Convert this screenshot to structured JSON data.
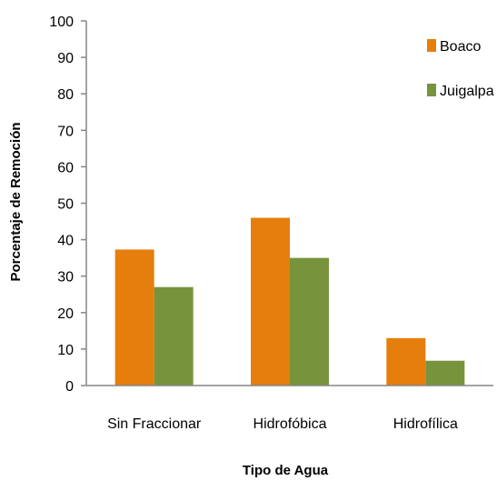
{
  "chart_data": {
    "type": "bar",
    "title": "",
    "xlabel": "Tipo de Agua",
    "ylabel": "Porcentaje de Remoción",
    "categories": [
      "Sin Fraccionar",
      "Hidrofóbica",
      "Hidrofílica"
    ],
    "series": [
      {
        "name": "Boaco",
        "values": [
          37.3,
          46.0,
          13.0
        ],
        "color": "#E67E0E"
      },
      {
        "name": "Juigalpa",
        "values": [
          27.0,
          35.0,
          6.8
        ],
        "color": "#77933C"
      }
    ],
    "ylim": [
      0,
      100
    ],
    "yticks": [
      "0",
      "10",
      "20",
      "30",
      "40",
      "50",
      "60",
      "70",
      "80",
      "90",
      "100"
    ],
    "grid": false,
    "legend_position": "top-right"
  }
}
